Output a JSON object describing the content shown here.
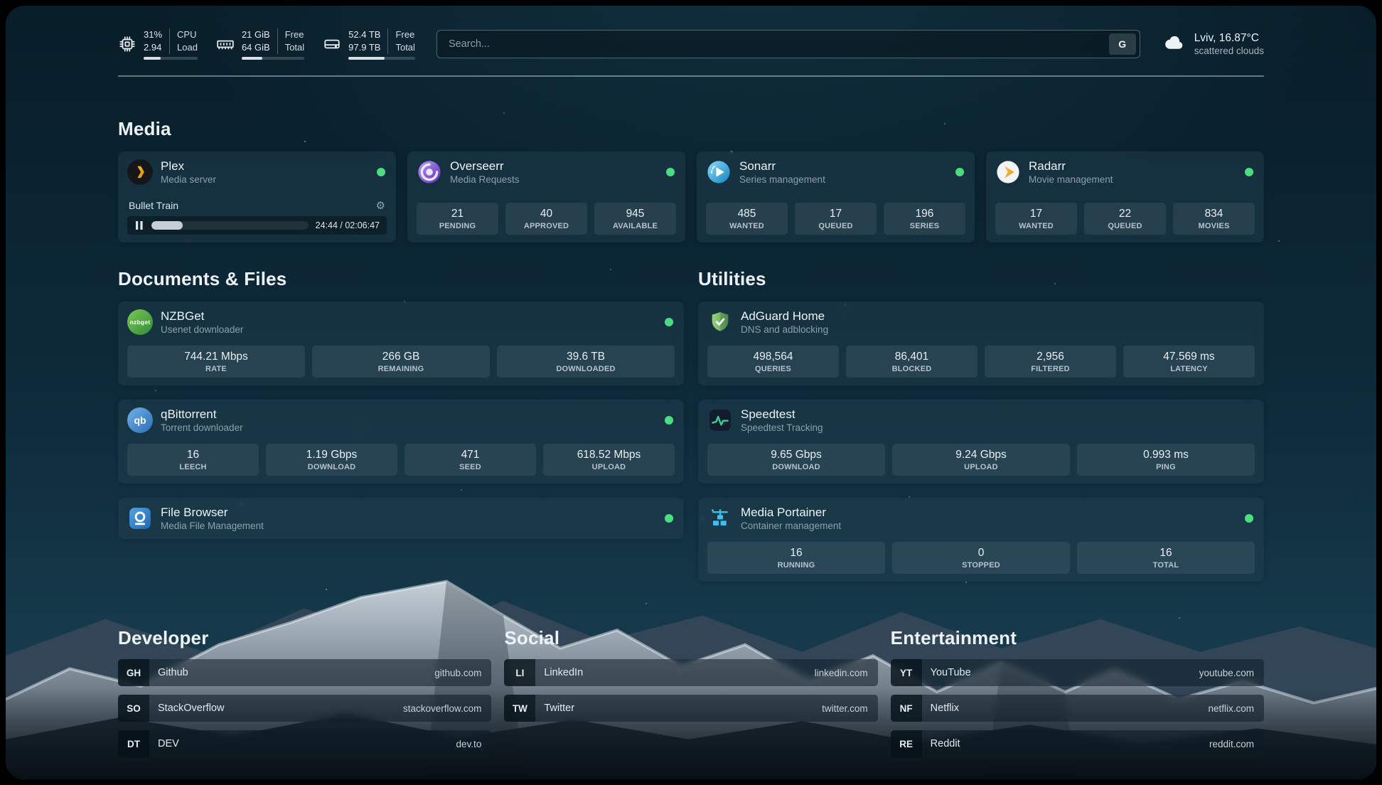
{
  "colors": {
    "status_online": "#4ade80",
    "plex": "#e5a00d",
    "overseerr": "#7c3aed",
    "sonarr": "#35c5f4",
    "radarr": "#f7a72b",
    "nzbget": "#54b045",
    "qbittorrent": "#4181c7",
    "filebrowser": "#2f86d6",
    "adguard": "#67b279",
    "speedtest": "#34d399",
    "portainer": "#3dc0f0"
  },
  "icons": {
    "gear": "⚙",
    "nzbget_label": "nzbget",
    "qbittorrent_label": "qb"
  },
  "topbar": {
    "cpu": {
      "value1": "31%",
      "value2": "2.94",
      "label1": "CPU",
      "label2": "Load",
      "progress": 31
    },
    "memory": {
      "value1": "21 GiB",
      "value2": "64 GiB",
      "label1": "Free",
      "label2": "Total",
      "progress": 33
    },
    "disk": {
      "value1": "52.4 TB",
      "value2": "97.9 TB",
      "label1": "Free",
      "label2": "Total",
      "progress": 54
    },
    "search": {
      "placeholder": "Search...",
      "provider": "G"
    },
    "weather": {
      "location": "Lviv, 16.87°C",
      "condition": "scattered clouds"
    }
  },
  "media": {
    "heading": "Media",
    "plex": {
      "name": "Plex",
      "subtitle": "Media server",
      "now_playing": "Bullet Train",
      "time": "24:44 / 02:06:47",
      "progress": 20
    },
    "overseerr": {
      "name": "Overseerr",
      "subtitle": "Media Requests",
      "stat1_value": "21",
      "stat1_label": "PENDING",
      "stat2_value": "40",
      "stat2_label": "APPROVED",
      "stat3_value": "945",
      "stat3_label": "AVAILABLE"
    },
    "sonarr": {
      "name": "Sonarr",
      "subtitle": "Series management",
      "stat1_value": "485",
      "stat1_label": "WANTED",
      "stat2_value": "17",
      "stat2_label": "QUEUED",
      "stat3_value": "196",
      "stat3_label": "SERIES"
    },
    "radarr": {
      "name": "Radarr",
      "subtitle": "Movie management",
      "stat1_value": "17",
      "stat1_label": "WANTED",
      "stat2_value": "22",
      "stat2_label": "QUEUED",
      "stat3_value": "834",
      "stat3_label": "MOVIES"
    }
  },
  "documents": {
    "heading": "Documents & Files",
    "nzbget": {
      "name": "NZBGet",
      "subtitle": "Usenet downloader",
      "stat1_value": "744.21 Mbps",
      "stat1_label": "RATE",
      "stat2_value": "266 GB",
      "stat2_label": "REMAINING",
      "stat3_value": "39.6 TB",
      "stat3_label": "DOWNLOADED"
    },
    "qbittorrent": {
      "name": "qBittorrent",
      "subtitle": "Torrent downloader",
      "stat1_value": "16",
      "stat1_label": "LEECH",
      "stat2_value": "1.19 Gbps",
      "stat2_label": "DOWNLOAD",
      "stat3_value": "471",
      "stat3_label": "SEED",
      "stat4_value": "618.52 Mbps",
      "stat4_label": "UPLOAD"
    },
    "filebrowser": {
      "name": "File Browser",
      "subtitle": "Media File Management"
    }
  },
  "utilities": {
    "heading": "Utilities",
    "adguard": {
      "name": "AdGuard Home",
      "subtitle": "DNS and adblocking",
      "stat1_value": "498,564",
      "stat1_label": "QUERIES",
      "stat2_value": "86,401",
      "stat2_label": "BLOCKED",
      "stat3_value": "2,956",
      "stat3_label": "FILTERED",
      "stat4_value": "47.569 ms",
      "stat4_label": "LATENCY"
    },
    "speedtest": {
      "name": "Speedtest",
      "subtitle": "Speedtest Tracking",
      "stat1_value": "9.65 Gbps",
      "stat1_label": "DOWNLOAD",
      "stat2_value": "9.24 Gbps",
      "stat2_label": "UPLOAD",
      "stat3_value": "0.993 ms",
      "stat3_label": "PING"
    },
    "portainer": {
      "name": "Media Portainer",
      "subtitle": "Container management",
      "stat1_value": "16",
      "stat1_label": "RUNNING",
      "stat2_value": "0",
      "stat2_label": "STOPPED",
      "stat3_value": "16",
      "stat3_label": "TOTAL"
    }
  },
  "bookmarks": {
    "developer": {
      "heading": "Developer",
      "item1_abbr": "GH",
      "item1_name": "Github",
      "item1_url": "github.com",
      "item2_abbr": "SO",
      "item2_name": "StackOverflow",
      "item2_url": "stackoverflow.com",
      "item3_abbr": "DT",
      "item3_name": "DEV",
      "item3_url": "dev.to"
    },
    "social": {
      "heading": "Social",
      "item1_abbr": "LI",
      "item1_name": "LinkedIn",
      "item1_url": "linkedin.com",
      "item2_abbr": "TW",
      "item2_name": "Twitter",
      "item2_url": "twitter.com"
    },
    "entertainment": {
      "heading": "Entertainment",
      "item1_abbr": "YT",
      "item1_name": "YouTube",
      "item1_url": "youtube.com",
      "item2_abbr": "NF",
      "item2_name": "Netflix",
      "item2_url": "netflix.com",
      "item3_abbr": "RE",
      "item3_name": "Reddit",
      "item3_url": "reddit.com"
    }
  }
}
